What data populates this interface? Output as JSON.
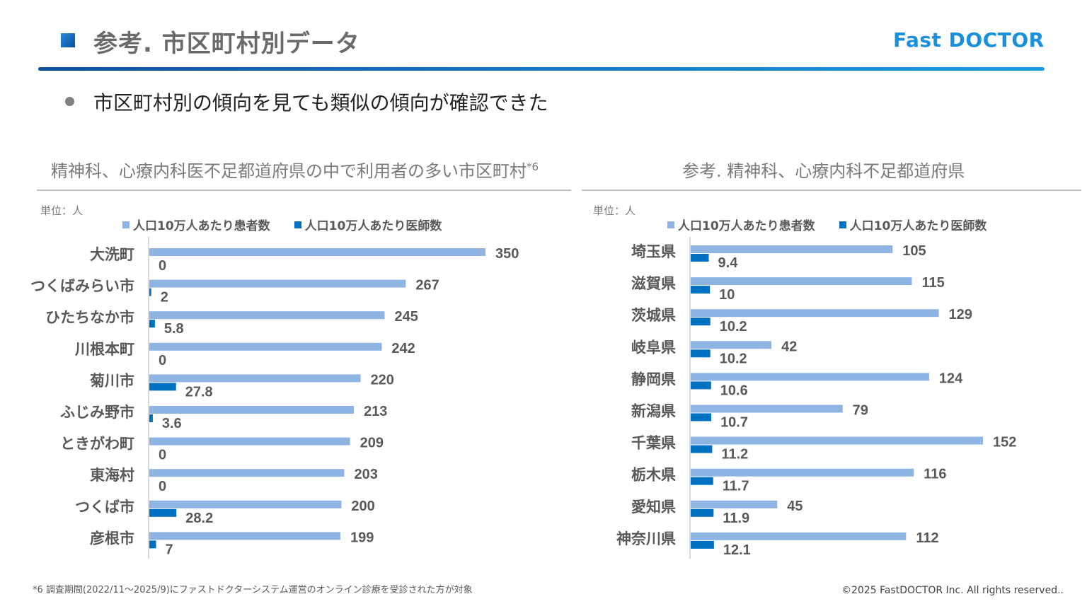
{
  "header": {
    "title": "参考. 市区町村別データ",
    "logo": "Fast DOCTOR"
  },
  "bullet": "市区町村別の傾向を見ても類似の傾向が確認できた",
  "footer": {
    "footnote": "*6 調査期間(2022/11～2025/9)にファストドクターシステム運営のオンライン診療を受診された方が対象",
    "copyright": "©2025 FastDOCTOR Inc. All rights reserved.."
  },
  "colors": {
    "patients": "#8eb4e3",
    "doctors": "#0070c0",
    "accent": "#1a8fdc"
  },
  "chart_data": [
    {
      "type": "bar",
      "orientation": "horizontal",
      "title": "精神科、心療内科医不足都道府県の中で利用者の多い市区町村",
      "title_sup": "*6",
      "unit_label": "単位：人",
      "legend_placement": "top",
      "categories": [
        "大洗町",
        "つくばみらい市",
        "ひたちなか市",
        "川根本町",
        "菊川市",
        "ふじみ野市",
        "ときがわ町",
        "東海村",
        "つくば市",
        "彦根市"
      ],
      "series": [
        {
          "name": "人口10万人あたり患者数",
          "values": [
            350,
            267,
            245,
            242,
            220,
            213,
            209,
            203,
            200,
            199
          ]
        },
        {
          "name": "人口10万人あたり医師数",
          "values": [
            0,
            2,
            5.8,
            0,
            27.8,
            3.6,
            0,
            0,
            28.2,
            7
          ]
        }
      ],
      "xlim": [
        0,
        350
      ],
      "grid": false
    },
    {
      "type": "bar",
      "orientation": "horizontal",
      "title": "参考. 精神科、心療内科不足都道府県",
      "unit_label": "単位：人",
      "legend_placement": "top",
      "categories": [
        "埼玉県",
        "滋賀県",
        "茨城県",
        "岐阜県",
        "静岡県",
        "新潟県",
        "千葉県",
        "栃木県",
        "愛知県",
        "神奈川県"
      ],
      "series": [
        {
          "name": "人口10万人あたり患者数",
          "values": [
            105,
            115,
            129,
            42,
            124,
            79,
            152,
            116,
            45,
            112
          ]
        },
        {
          "name": "人口10万人あたり医師数",
          "values": [
            9.4,
            10,
            10.2,
            10.2,
            10.6,
            10.7,
            11.2,
            11.7,
            11.9,
            12.1
          ]
        }
      ],
      "xlim": [
        0,
        152
      ],
      "grid": false
    }
  ]
}
